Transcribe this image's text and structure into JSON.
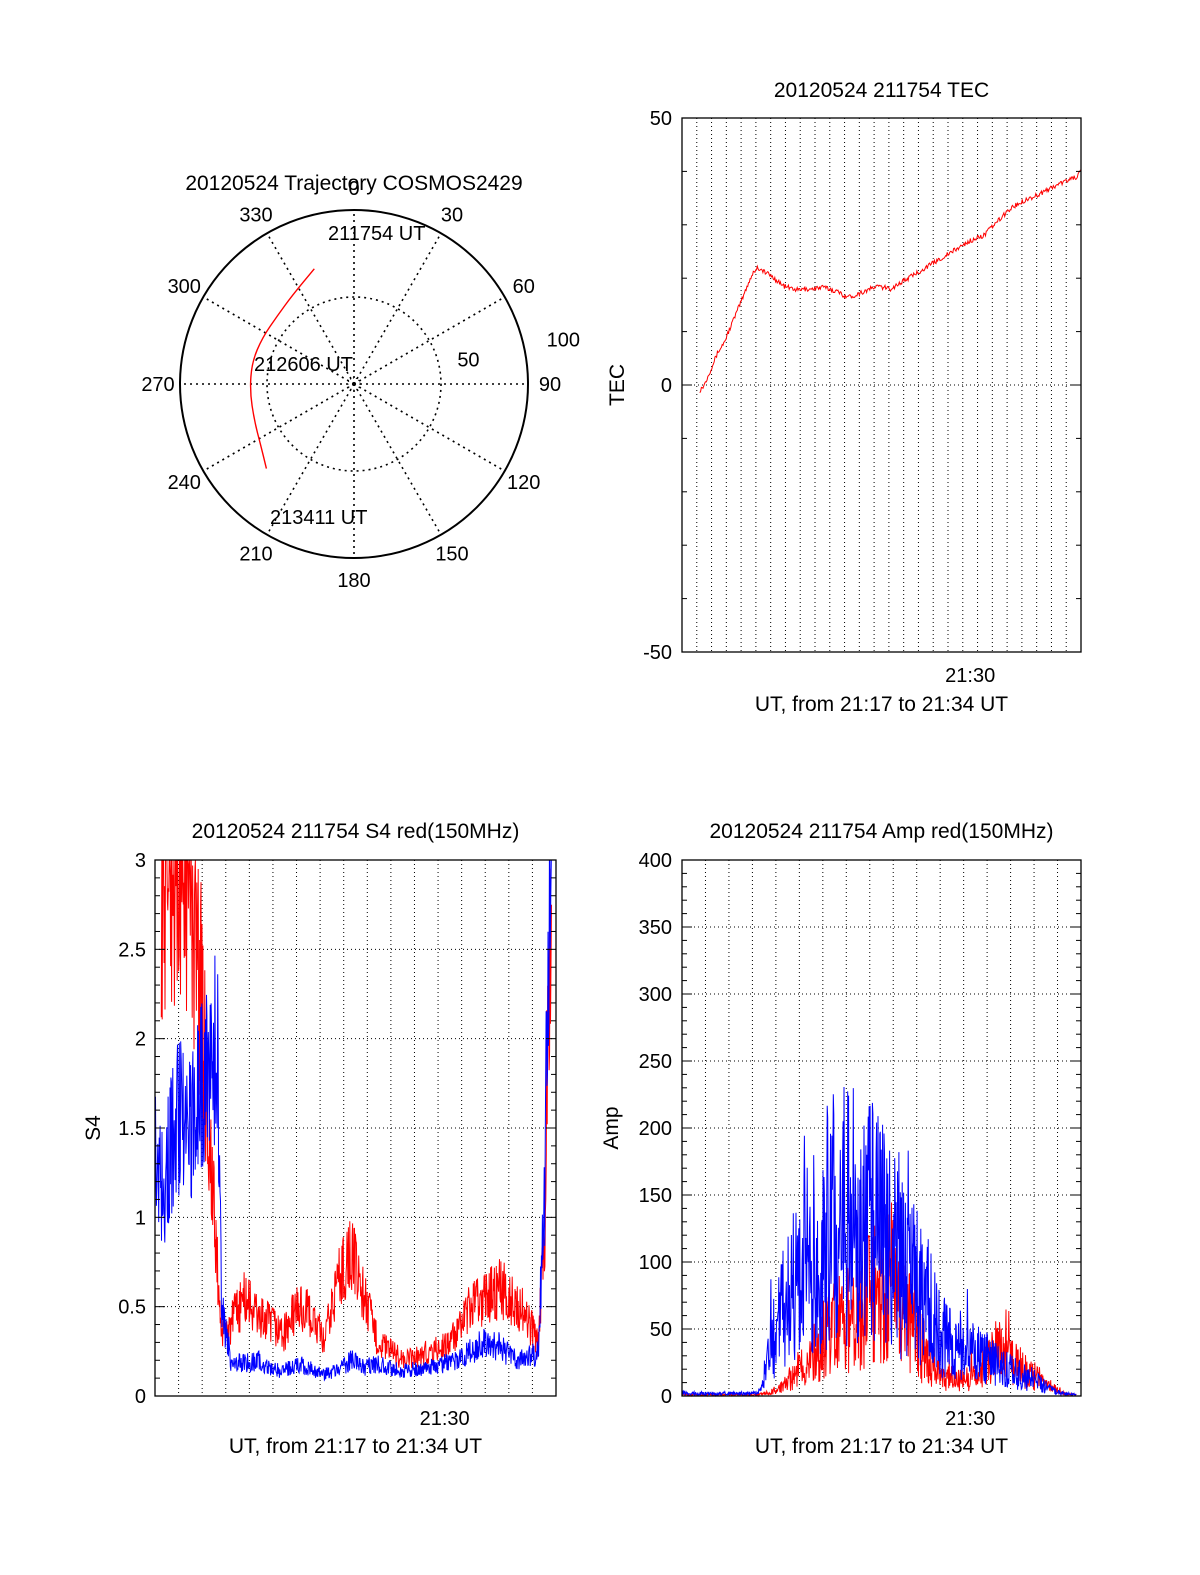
{
  "colors": {
    "red": "#ff0000",
    "blue": "#0000ff",
    "axis": "#000000",
    "grid": "#000000"
  },
  "chart_data": [
    {
      "type": "polar",
      "title": "20120524 Trajectory COSMOS2429",
      "azimuth_labels": [
        "0",
        "30",
        "60",
        "90",
        "120",
        "150",
        "180",
        "210",
        "240",
        "270",
        "300",
        "330"
      ],
      "radial_labels": [
        "50",
        "100"
      ],
      "series": [
        {
          "color": "red",
          "points": [
            {
              "az": 341,
              "r": 70
            },
            {
              "az": 325,
              "r": 62
            },
            {
              "az": 312,
              "r": 59
            },
            {
              "az": 297,
              "r": 59
            },
            {
              "az": 282,
              "r": 60
            },
            {
              "az": 266,
              "r": 60
            },
            {
              "az": 250,
              "r": 61
            },
            {
              "az": 237,
              "r": 64
            },
            {
              "az": 226,
              "r": 70
            }
          ]
        }
      ],
      "annotations": [
        {
          "text": "211754 UT",
          "az": 341,
          "r": 70
        },
        {
          "text": "212606 UT",
          "az": 270,
          "r": 60
        },
        {
          "text": "213411 UT",
          "az": 226,
          "r": 70
        }
      ]
    },
    {
      "type": "line",
      "title": "20120524 211754 TEC",
      "xlabel": "UT, from 21:17 to 21:34 UT",
      "ylabel": "TEC",
      "xlim": [
        21.2833,
        21.5833
      ],
      "ylim": [
        -50,
        50
      ],
      "yticks": [
        -50,
        0,
        50
      ],
      "xticks": [
        {
          "value": 21.5,
          "label": "21:30"
        }
      ],
      "series": [
        {
          "color": "red",
          "x": [
            21.2967,
            21.3,
            21.305,
            21.31,
            21.315,
            21.32,
            21.325,
            21.33,
            21.333,
            21.3367,
            21.34,
            21.35,
            21.36,
            21.37,
            21.38,
            21.39,
            21.4,
            21.405,
            21.41,
            21.42,
            21.43,
            21.44,
            21.45,
            21.46,
            21.47,
            21.48,
            21.49,
            21.5,
            21.51,
            21.52,
            21.53,
            21.54,
            21.55,
            21.56,
            21.57,
            21.58,
            21.5833
          ],
          "y": [
            -1,
            0,
            3,
            6,
            8,
            11,
            14,
            17,
            19,
            21,
            22,
            20.5,
            18.5,
            17.8,
            18,
            18.3,
            17.5,
            16.8,
            16.5,
            17.5,
            18.5,
            18,
            19.5,
            21,
            22.5,
            24,
            25.5,
            27,
            28,
            30.5,
            33,
            34.5,
            35.5,
            36.8,
            38,
            39,
            40
          ]
        }
      ]
    },
    {
      "type": "line",
      "title": "20120524 211754 S4 red(150MHz)",
      "xlabel": "UT, from 21:17 to 21:34 UT",
      "ylabel": "S4",
      "xlim": [
        21.2833,
        21.5833
      ],
      "ylim": [
        0,
        3
      ],
      "yticks": [
        0,
        0.5,
        1,
        1.5,
        2,
        2.5,
        3
      ],
      "xticks": [
        {
          "value": 21.5,
          "label": "21:30"
        }
      ],
      "series": [
        {
          "color": "red",
          "x": [
            21.288,
            21.3,
            21.31,
            21.318,
            21.325,
            21.333,
            21.34,
            21.35,
            21.36,
            21.37,
            21.38,
            21.39,
            21.4,
            21.41,
            21.42,
            21.43,
            21.44,
            21.45,
            21.46,
            21.47,
            21.48,
            21.49,
            21.5,
            21.51,
            21.52,
            21.53,
            21.54,
            21.55,
            21.56,
            21.57,
            21.575,
            21.578,
            21.58
          ],
          "y": [
            3,
            3,
            3,
            2.2,
            1.3,
            0.35,
            0.4,
            0.55,
            0.45,
            0.4,
            0.35,
            0.5,
            0.45,
            0.3,
            0.65,
            0.8,
            0.55,
            0.3,
            0.25,
            0.2,
            0.22,
            0.25,
            0.28,
            0.35,
            0.5,
            0.55,
            0.6,
            0.55,
            0.45,
            0.3,
            1.0,
            2.5,
            3
          ]
        },
        {
          "color": "blue",
          "x": [
            21.2833,
            21.29,
            21.3,
            21.31,
            21.32,
            21.33,
            21.333,
            21.34,
            21.35,
            21.36,
            21.37,
            21.38,
            21.39,
            21.4,
            21.41,
            21.42,
            21.43,
            21.44,
            21.45,
            21.46,
            21.47,
            21.48,
            21.49,
            21.5,
            21.51,
            21.52,
            21.53,
            21.54,
            21.55,
            21.56,
            21.57,
            21.575,
            21.578,
            21.58
          ],
          "y": [
            1.35,
            1.2,
            1.6,
            1.5,
            1.8,
            2.0,
            0.5,
            0.2,
            0.18,
            0.2,
            0.15,
            0.14,
            0.18,
            0.15,
            0.12,
            0.14,
            0.2,
            0.16,
            0.18,
            0.15,
            0.14,
            0.15,
            0.16,
            0.18,
            0.2,
            0.25,
            0.3,
            0.28,
            0.22,
            0.2,
            0.25,
            1.2,
            2.8,
            3
          ]
        }
      ]
    },
    {
      "type": "line",
      "title": "20120524 211754 Amp red(150MHz)",
      "xlabel": "UT, from 21:17 to 21:34 UT",
      "ylabel": "Amp",
      "xlim": [
        21.2833,
        21.5833
      ],
      "ylim": [
        0,
        400
      ],
      "yticks": [
        0,
        50,
        100,
        150,
        200,
        250,
        300,
        350,
        400
      ],
      "xticks": [
        {
          "value": 21.5,
          "label": "21:30"
        }
      ],
      "series": [
        {
          "color": "red",
          "x": [
            21.2833,
            21.3,
            21.32,
            21.34,
            21.35,
            21.36,
            21.37,
            21.38,
            21.39,
            21.4,
            21.41,
            21.42,
            21.43,
            21.44,
            21.45,
            21.46,
            21.47,
            21.48,
            21.49,
            21.5,
            21.51,
            21.52,
            21.53,
            21.54,
            21.55,
            21.56,
            21.57,
            21.58
          ],
          "y": [
            1,
            1,
            1,
            1,
            3,
            8,
            20,
            30,
            45,
            55,
            60,
            70,
            80,
            90,
            70,
            45,
            25,
            15,
            12,
            15,
            25,
            35,
            30,
            20,
            15,
            8,
            2,
            1
          ]
        },
        {
          "color": "blue",
          "x": [
            21.2833,
            21.3,
            21.32,
            21.34,
            21.345,
            21.35,
            21.36,
            21.37,
            21.38,
            21.39,
            21.4,
            21.41,
            21.42,
            21.43,
            21.44,
            21.45,
            21.46,
            21.47,
            21.48,
            21.49,
            21.5,
            21.51,
            21.52,
            21.53,
            21.54,
            21.55,
            21.56,
            21.57,
            21.58
          ],
          "y": [
            2,
            2,
            2,
            2,
            10,
            40,
            70,
            90,
            110,
            130,
            140,
            150,
            145,
            130,
            115,
            100,
            85,
            70,
            50,
            40,
            35,
            30,
            25,
            20,
            15,
            12,
            5,
            2,
            1
          ]
        }
      ]
    }
  ]
}
